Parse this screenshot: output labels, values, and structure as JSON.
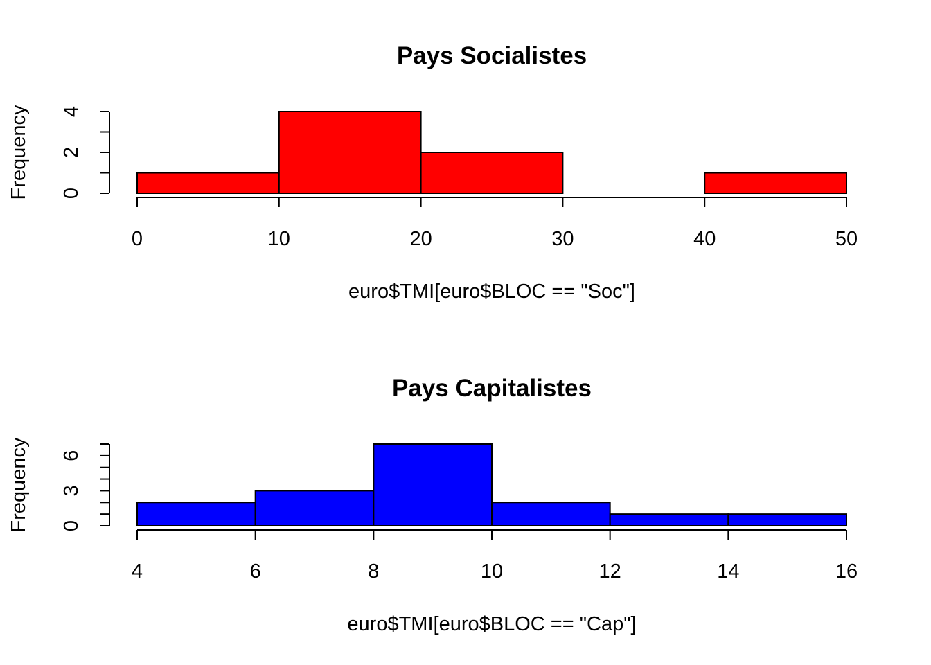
{
  "chart_data": [
    {
      "type": "bar",
      "title": "Pays Socialistes",
      "xlabel": "euro$TMI[euro$BLOC == \"Soc\"]",
      "ylabel": "Frequency",
      "color": "#ff0000",
      "bins": [
        {
          "from": 0,
          "to": 10,
          "count": 1
        },
        {
          "from": 10,
          "to": 20,
          "count": 4
        },
        {
          "from": 20,
          "to": 30,
          "count": 2
        },
        {
          "from": 30,
          "to": 40,
          "count": 0
        },
        {
          "from": 40,
          "to": 50,
          "count": 1
        }
      ],
      "xlim": [
        0,
        50
      ],
      "ylim": [
        0,
        4
      ],
      "xticks": [
        0,
        10,
        20,
        30,
        40,
        50
      ],
      "yticks": [
        0,
        2,
        4
      ],
      "yminor": [
        1,
        3
      ],
      "grid": false
    },
    {
      "type": "bar",
      "title": "Pays Capitalistes",
      "xlabel": "euro$TMI[euro$BLOC == \"Cap\"]",
      "ylabel": "Frequency",
      "color": "#0000ff",
      "bins": [
        {
          "from": 4,
          "to": 6,
          "count": 2
        },
        {
          "from": 6,
          "to": 8,
          "count": 3
        },
        {
          "from": 8,
          "to": 10,
          "count": 7
        },
        {
          "from": 10,
          "to": 12,
          "count": 2
        },
        {
          "from": 12,
          "to": 14,
          "count": 1
        },
        {
          "from": 14,
          "to": 16,
          "count": 1
        }
      ],
      "xlim": [
        4,
        16
      ],
      "ylim": [
        0,
        7
      ],
      "xticks": [
        4,
        6,
        8,
        10,
        12,
        14,
        16
      ],
      "yticks": [
        0,
        3,
        6
      ],
      "yminor": [
        1,
        2,
        4,
        5,
        7
      ],
      "grid": false
    }
  ]
}
